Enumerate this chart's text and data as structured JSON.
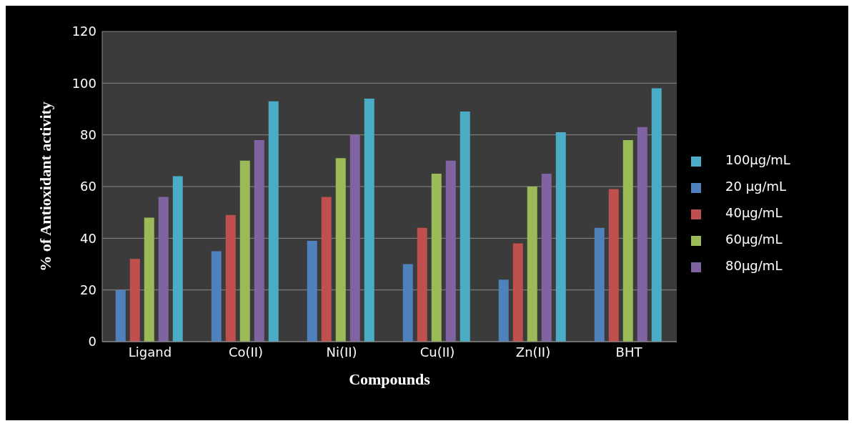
{
  "chart_data": {
    "type": "bar",
    "xlabel": "Compounds",
    "ylabel": "% of Antioxidant activity",
    "categories": [
      "Ligand",
      "Co(II)",
      "Ni(II)",
      "Cu(II)",
      "Zn(II)",
      "BHT"
    ],
    "series": [
      {
        "name": "20 µg/mL",
        "color": "#4f81bd",
        "values": [
          20,
          35,
          39,
          30,
          24,
          44
        ]
      },
      {
        "name": "40µg/mL",
        "color": "#c0504d",
        "values": [
          32,
          49,
          56,
          44,
          38,
          59
        ]
      },
      {
        "name": "60µg/mL",
        "color": "#9bbb59",
        "values": [
          48,
          70,
          71,
          65,
          60,
          78
        ]
      },
      {
        "name": "80µg/mL",
        "color": "#8064a2",
        "values": [
          56,
          78,
          80,
          70,
          65,
          83
        ]
      },
      {
        "name": "100µg/mL",
        "color": "#4bacc6",
        "values": [
          64,
          93,
          94,
          89,
          81,
          98
        ]
      }
    ],
    "ylim": [
      0,
      120
    ],
    "yticks": [
      0,
      20,
      40,
      60,
      80,
      100,
      120
    ],
    "grid": "y",
    "legend": "right"
  }
}
